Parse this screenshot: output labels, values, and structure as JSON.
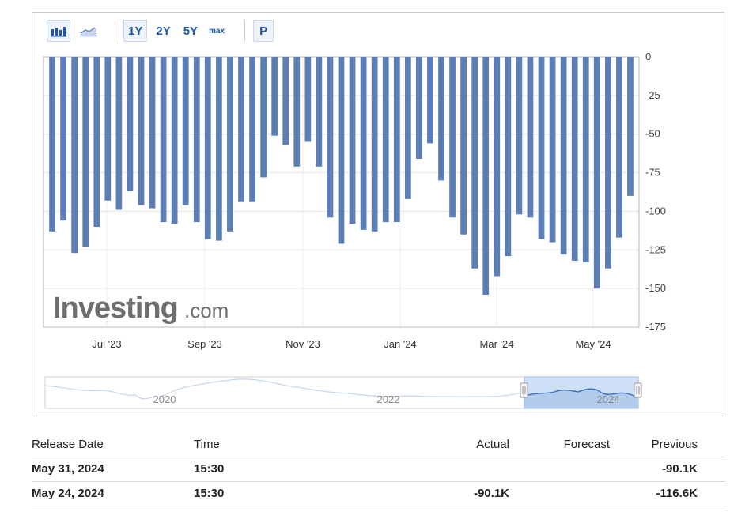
{
  "toolbar": {
    "icons": [
      {
        "name": "bar-chart-icon",
        "active": true
      },
      {
        "name": "line-chart-icon",
        "active": false
      }
    ],
    "ranges": [
      {
        "label": "1Y",
        "active": true
      },
      {
        "label": "2Y",
        "active": false
      },
      {
        "label": "5Y",
        "active": false
      },
      {
        "label": "max",
        "active": false
      }
    ],
    "extra_button": "P"
  },
  "watermark": {
    "brand": "Investing",
    "suffix": ".com"
  },
  "chart_data": {
    "type": "bar",
    "bar_color": "#5b7fb4",
    "y_ticks": [
      0,
      -25,
      -50,
      -75,
      -100,
      -125,
      -150,
      -175
    ],
    "ylim": [
      -175,
      0
    ],
    "y_axis_side": "right",
    "grid": true,
    "x_tick_labels": [
      "Jul '23",
      "Sep '23",
      "Nov '23",
      "Jan '24",
      "Mar '24",
      "May '24"
    ],
    "values": [
      -113,
      -106,
      -127,
      -123,
      -110,
      -93,
      -99,
      -87,
      -96,
      -98,
      -107,
      -108,
      -96,
      -107,
      -118,
      -119,
      -113,
      -94,
      -94,
      -78,
      -51,
      -57,
      -71,
      -55,
      -71,
      -104,
      -121,
      -108,
      -112,
      -113,
      -107,
      -107,
      -92,
      -66,
      -56,
      -80,
      -104,
      -115,
      -137,
      -154,
      -142,
      -129,
      -102,
      -104,
      -118,
      -120,
      -128,
      -132,
      -133,
      -150,
      -137,
      -117,
      -90
    ],
    "navigator": {
      "year_labels": [
        "2020",
        "2022",
        "2024"
      ]
    }
  },
  "table": {
    "headers": {
      "date": "Release Date",
      "time": "Time",
      "actual": "Actual",
      "forecast": "Forecast",
      "previous": "Previous"
    },
    "rows": [
      {
        "date": "May 31, 2024",
        "time": "15:30",
        "actual": "",
        "forecast": "",
        "previous": "-90.1K"
      },
      {
        "date": "May 24, 2024",
        "time": "15:30",
        "actual": "-90.1K",
        "forecast": "",
        "previous": "-116.6K"
      }
    ]
  }
}
